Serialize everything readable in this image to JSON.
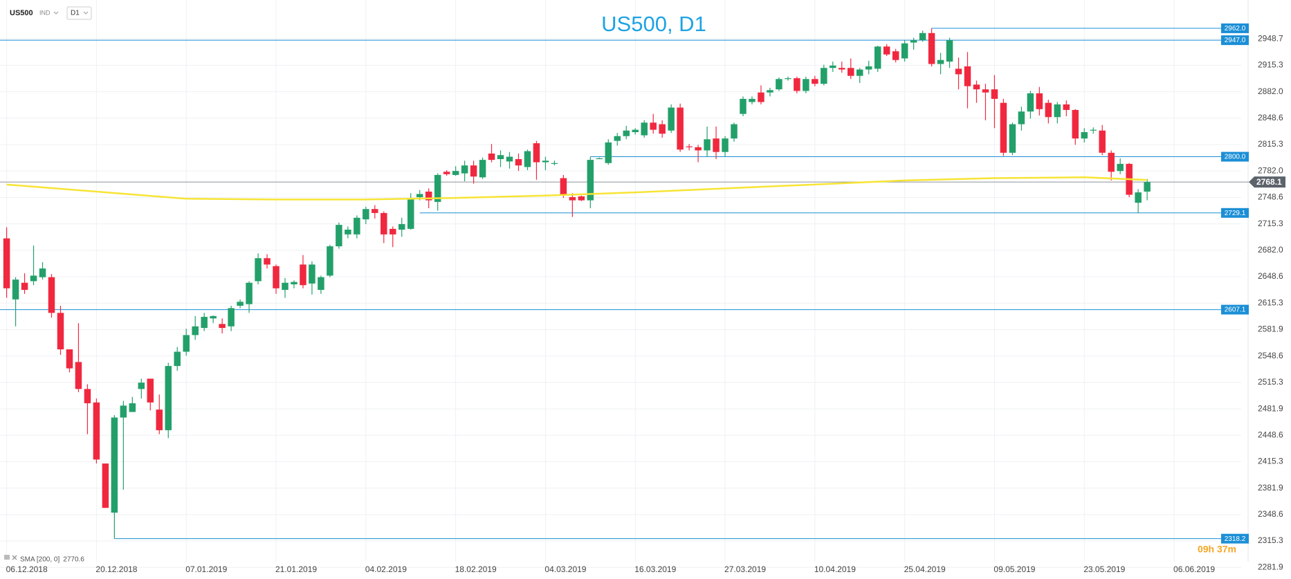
{
  "chart_data": {
    "type": "candlestick",
    "title": "US500, D1",
    "symbol": "US500",
    "market": "IND",
    "interval": "D1",
    "up_color": "#23a06a",
    "down_color": "#f0283f",
    "open": [
      2697,
      2620,
      2641,
      2643,
      2648,
      2648,
      2603,
      2557,
      2541,
      2507,
      2490,
      2413,
      2351,
      2471,
      2478,
      2507,
      2520,
      2481,
      2455,
      2536,
      2554,
      2575,
      2584,
      2596,
      2589,
      2586,
      2612,
      2614,
      2643,
      2672,
      2662,
      2632,
      2639,
      2664,
      2640,
      2632,
      2650,
      2687,
      2702,
      2702,
      2721,
      2734,
      2729,
      2709,
      2708,
      2709,
      2749,
      2756,
      2743,
      2781,
      2777,
      2779,
      2789,
      2774,
      2804,
      2797,
      2794,
      2797,
      2787,
      2817,
      2793,
      2791,
      2773,
      2749,
      2750,
      2745,
      2797,
      2792,
      2820,
      2826,
      2831,
      2827,
      2843,
      2841,
      2833,
      2862,
      2813,
      2812,
      2808,
      2823,
      2806,
      2823,
      2854,
      2869,
      2881,
      2881,
      2885,
      2898,
      2899,
      2883,
      2898,
      2892,
      2912,
      2912,
      2912,
      2902,
      2910,
      2911,
      2939,
      2933,
      2924,
      2944,
      2947,
      2956,
      2917,
      2920,
      2911,
      2914,
      2891,
      2885,
      2885,
      2868,
      2805,
      2841,
      2857,
      2880,
      2868,
      2850,
      2866,
      2859,
      2823,
      2833,
      2833,
      2805,
      2782,
      2791,
      2742,
      2756
    ],
    "high": [
      2711,
      2648,
      2653,
      2688,
      2667,
      2652,
      2612,
      2557,
      2590,
      2513,
      2495,
      2413,
      2474,
      2492,
      2497,
      2520,
      2520,
      2500,
      2540,
      2560,
      2583,
      2599,
      2603,
      2600,
      2596,
      2612,
      2620,
      2643,
      2678,
      2677,
      2664,
      2647,
      2644,
      2676,
      2668,
      2650,
      2689,
      2717,
      2712,
      2726,
      2737,
      2739,
      2731,
      2712,
      2723,
      2754,
      2758,
      2760,
      2779,
      2783,
      2788,
      2795,
      2795,
      2799,
      2816,
      2808,
      2806,
      2804,
      2809,
      2820,
      2800,
      2795,
      2777,
      2754,
      2751,
      2800,
      2799,
      2822,
      2830,
      2839,
      2836,
      2846,
      2854,
      2846,
      2866,
      2867,
      2816,
      2815,
      2838,
      2838,
      2826,
      2843,
      2876,
      2876,
      2890,
      2887,
      2900,
      2901,
      2901,
      2901,
      2902,
      2916,
      2920,
      2920,
      2924,
      2912,
      2921,
      2940,
      2942,
      2936,
      2947,
      2950,
      2959,
      2962,
      2931,
      2950,
      2925,
      2932,
      2896,
      2892,
      2903,
      2873,
      2843,
      2863,
      2883,
      2888,
      2872,
      2869,
      2871,
      2860,
      2836,
      2837,
      2840,
      2808,
      2798,
      2792,
      2759,
      2772
    ],
    "low": [
      2622,
      2586,
      2627,
      2638,
      2645,
      2597,
      2550,
      2528,
      2503,
      2450,
      2413,
      2357,
      2318.2,
      2380,
      2478,
      2495,
      2480,
      2450,
      2445,
      2530,
      2549,
      2569,
      2580,
      2590,
      2577,
      2580,
      2609,
      2603,
      2639,
      2659,
      2627,
      2622,
      2634,
      2634,
      2626,
      2627,
      2648,
      2684,
      2697,
      2697,
      2715,
      2722,
      2691,
      2686,
      2699,
      2708,
      2745,
      2735,
      2732,
      2776,
      2776,
      2769,
      2766,
      2772,
      2793,
      2787,
      2785,
      2782,
      2783,
      2771,
      2783,
      2789,
      2748,
      2724,
      2744,
      2735,
      2797,
      2790,
      2814,
      2822,
      2828,
      2824,
      2829,
      2824,
      2830,
      2806,
      2808,
      2793,
      2800,
      2797,
      2800,
      2819,
      2851,
      2866,
      2866,
      2876,
      2883,
      2896,
      2880,
      2880,
      2889,
      2890,
      2907,
      2906,
      2898,
      2893,
      2904,
      2907,
      2927,
      2919,
      2920,
      2935,
      2945,
      2914,
      2904,
      2912,
      2885,
      2861,
      2868,
      2846,
      2836,
      2801,
      2802,
      2833,
      2848,
      2852,
      2842,
      2842,
      2851,
      2815,
      2818,
      2829,
      2802,
      2770,
      2778,
      2749,
      2729,
      2745
    ],
    "close": [
      2634,
      2645,
      2632,
      2650,
      2659,
      2603,
      2557,
      2533,
      2507,
      2489,
      2418,
      2357,
      2471,
      2486,
      2489,
      2515,
      2490,
      2455,
      2536,
      2554,
      2575,
      2586,
      2598,
      2599,
      2584,
      2609,
      2617,
      2641,
      2672,
      2664,
      2634,
      2641,
      2642,
      2638,
      2664,
      2648,
      2687,
      2714,
      2708,
      2723,
      2734,
      2729,
      2702,
      2702,
      2715,
      2748,
      2753,
      2745,
      2777,
      2778,
      2782,
      2789,
      2775,
      2796,
      2796,
      2802,
      2800,
      2789,
      2807,
      2793,
      2795,
      2792,
      2752,
      2745,
      2745,
      2796,
      2798,
      2818,
      2826,
      2833,
      2834,
      2843,
      2834,
      2829,
      2862,
      2809,
      2812,
      2808,
      2822,
      2806,
      2823,
      2841,
      2873,
      2873,
      2869,
      2884,
      2898,
      2899,
      2883,
      2898,
      2892,
      2912,
      2915,
      2910,
      2902,
      2910,
      2914,
      2939,
      2929,
      2922,
      2943,
      2947,
      2956,
      2917,
      2922,
      2947,
      2904,
      2889,
      2885,
      2881,
      2873,
      2805,
      2841,
      2857,
      2880,
      2860,
      2850,
      2866,
      2859,
      2823,
      2831,
      2834,
      2805,
      2781,
      2791,
      2752,
      2755,
      2768.1
    ],
    "xlim": [
      -0.74,
      137.47
    ],
    "xticks": [
      {
        "value": 0,
        "label": "06.12.2018"
      },
      {
        "value": 10,
        "label": "20.12.2018"
      },
      {
        "value": 20,
        "label": "07.01.2019"
      },
      {
        "value": 30,
        "label": "21.01.2019"
      },
      {
        "value": 40,
        "label": "04.02.2019"
      },
      {
        "value": 50,
        "label": "18.02.2019"
      },
      {
        "value": 60,
        "label": "04.03.2019"
      },
      {
        "value": 70,
        "label": "16.03.2019"
      },
      {
        "value": 80,
        "label": "27.03.2019"
      },
      {
        "value": 90,
        "label": "10.04.2019"
      },
      {
        "value": 100,
        "label": "25.04.2019"
      },
      {
        "value": 110,
        "label": "09.05.2019"
      },
      {
        "value": 120,
        "label": "23.05.2019"
      },
      {
        "value": 130,
        "label": "06.06.2019"
      }
    ],
    "ylim": [
      2267.3,
      2997.7
    ],
    "yticks": [
      2948.7,
      2915.3,
      {
        "value": 2882,
        "label": "2882.0"
      },
      2848.6,
      2815.3,
      {
        "value": 2782,
        "label": "2782.0"
      },
      2748.6,
      2715.3,
      {
        "value": 2682,
        "label": "2682.0"
      },
      2648.6,
      2615.3,
      2581.9,
      2548.6,
      2515.3,
      2481.9,
      2448.6,
      2415.3,
      2381.9,
      2348.6,
      2315.3,
      2281.9
    ],
    "grid": true,
    "sma": {
      "name": "SMA [200, 0]",
      "color": "#f7e435",
      "x": [
        0,
        10,
        20,
        30,
        40,
        50,
        60,
        70,
        80,
        90,
        100,
        110,
        120,
        127
      ],
      "values": [
        2765,
        2756,
        2747,
        2746,
        2746,
        2748,
        2751,
        2755,
        2760,
        2765,
        2770,
        2773,
        2774,
        2770.6
      ]
    },
    "level_color": "#1b8fd6",
    "levels": [
      {
        "value": 2962,
        "label": "2962.0"
      },
      {
        "value": 2947,
        "label": "2947.0"
      },
      {
        "value": 2800,
        "label": "2800.0"
      },
      2729.1,
      2607.1,
      2318.2
    ],
    "timer": "09h 37m"
  }
}
